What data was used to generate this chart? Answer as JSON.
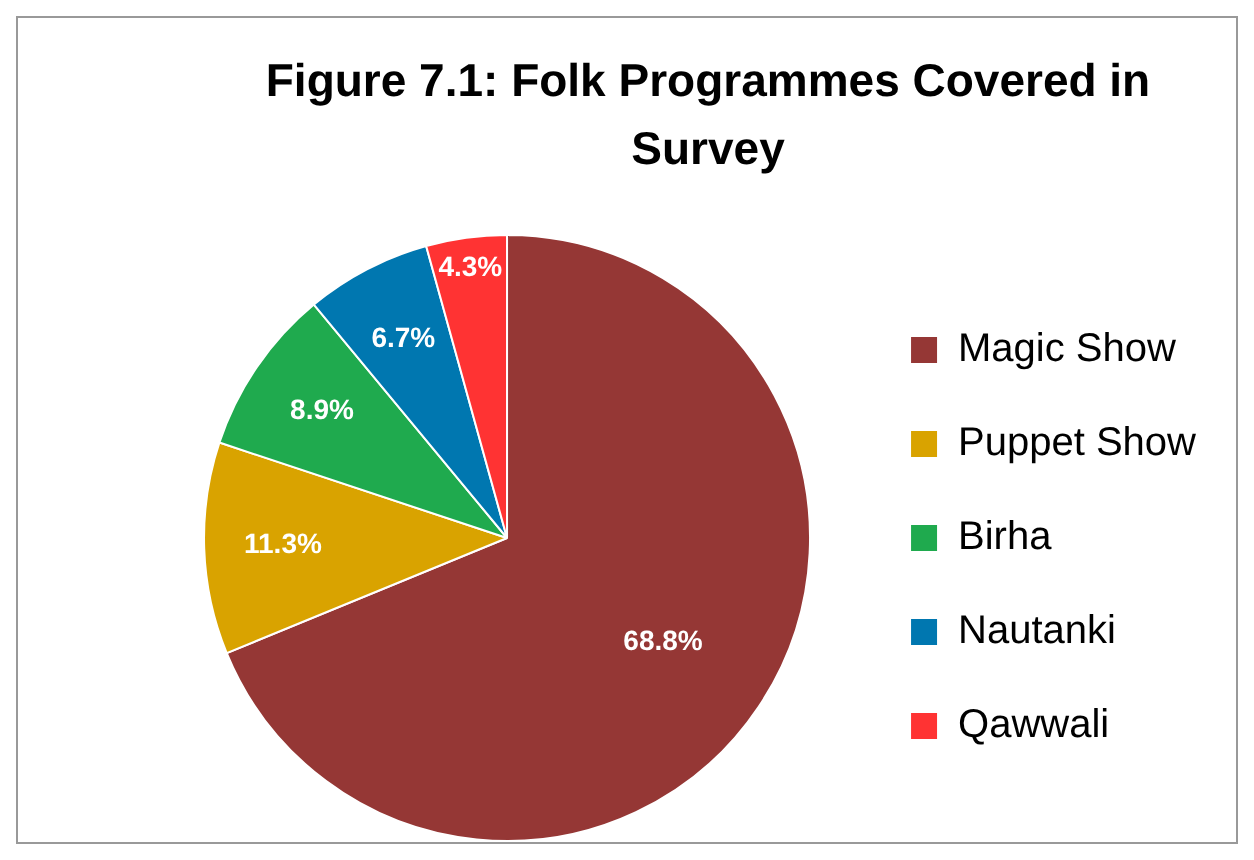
{
  "chart_data": {
    "type": "pie",
    "title": "Figure 7.1: Folk Programmes Covered in Survey",
    "categories": [
      "Magic Show",
      "Puppet Show",
      "Birha",
      "Nautanki",
      "Qawwali"
    ],
    "values": [
      68.8,
      11.3,
      8.9,
      6.7,
      4.3
    ],
    "colors": [
      "#953735",
      "#d9a300",
      "#1faa4e",
      "#0077b0",
      "#ff3333"
    ],
    "value_labels": [
      "68.8%",
      "11.3%",
      "8.9%",
      "6.7%",
      "4.3%"
    ],
    "legend": "right"
  }
}
